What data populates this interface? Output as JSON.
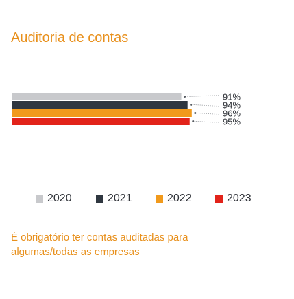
{
  "title": "Auditoria de contas",
  "note": "É obrigatório ter contas auditadas para algumas/todas as empresas",
  "colors": {
    "accent": "#e8901c",
    "text": "#2f3238"
  },
  "chart_data": {
    "type": "bar",
    "orientation": "horizontal",
    "xlim": [
      0,
      100
    ],
    "grid": false,
    "legend_position": "bottom",
    "series": [
      {
        "name": "2020",
        "value": 91,
        "label": "91%",
        "color": "#c8c9cc"
      },
      {
        "name": "2021",
        "value": 94,
        "label": "94%",
        "color": "#2f3740"
      },
      {
        "name": "2022",
        "value": 96,
        "label": "96%",
        "color": "#f19a1c"
      },
      {
        "name": "2023",
        "value": 95,
        "label": "95%",
        "color": "#e2231a"
      }
    ]
  }
}
